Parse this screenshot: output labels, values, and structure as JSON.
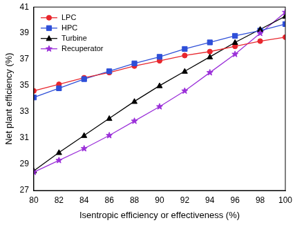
{
  "chart_data": {
    "type": "line",
    "x_label": "Isentropic efficiency or effectiveness (%)",
    "y_label": "Net plant efficiency (%)",
    "x": [
      80,
      82,
      84,
      86,
      88,
      90,
      92,
      94,
      96,
      98,
      100
    ],
    "series": [
      {
        "name": "LPC",
        "color": "#e8262d",
        "marker": "circle",
        "line_style": "solid",
        "values": [
          34.6,
          35.1,
          35.6,
          36.0,
          36.5,
          36.9,
          37.3,
          37.6,
          38.0,
          38.4,
          38.7
        ]
      },
      {
        "name": "HPC",
        "color": "#2e4fd8",
        "marker": "square",
        "line_style": "solid",
        "values": [
          34.1,
          34.8,
          35.5,
          36.1,
          36.7,
          37.2,
          37.8,
          38.3,
          38.8,
          39.2,
          39.7
        ]
      },
      {
        "name": "Turbine",
        "color": "#000000",
        "marker": "triangle",
        "line_style": "solid",
        "values": [
          28.5,
          29.9,
          31.2,
          32.5,
          33.8,
          35.0,
          36.1,
          37.2,
          38.3,
          39.3,
          40.3
        ]
      },
      {
        "name": "Recuperator",
        "color": "#9b30d9",
        "marker": "star",
        "line_style": "solid",
        "values": [
          28.4,
          29.3,
          30.2,
          31.2,
          32.3,
          33.4,
          34.6,
          36.0,
          37.4,
          39.0,
          40.6
        ]
      }
    ],
    "xlim": [
      80,
      100
    ],
    "xticks": [
      80,
      82,
      84,
      86,
      88,
      90,
      92,
      94,
      96,
      98,
      100
    ],
    "ylim": [
      27,
      41
    ],
    "yticks": [
      27,
      29,
      31,
      33,
      35,
      37,
      39,
      41
    ],
    "grid": false,
    "legend": "upper left"
  }
}
